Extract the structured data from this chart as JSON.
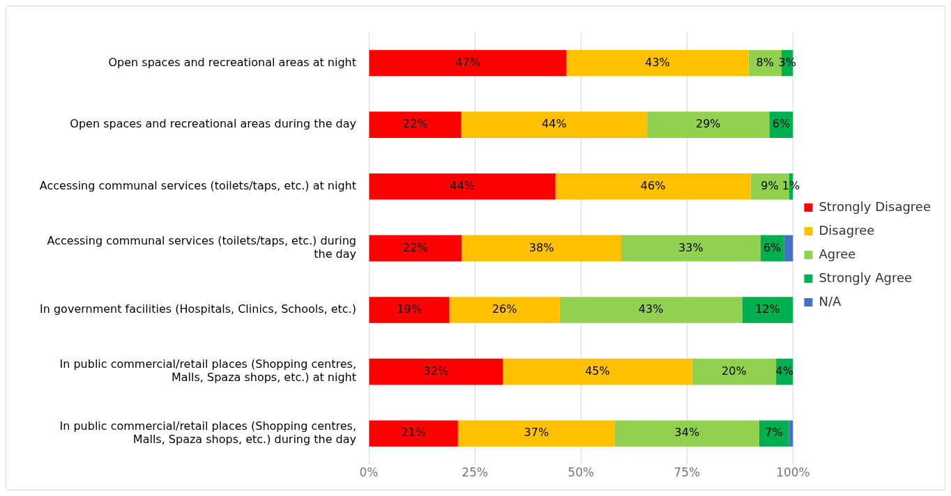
{
  "chart_data": {
    "type": "bar",
    "orientation": "horizontal",
    "stacked": true,
    "categories": [
      "Open spaces and recreational areas at night",
      "Open spaces and recreational areas during the day",
      "Accessing communal services (toilets/taps, etc.) at night",
      "Accessing communal services (toilets/taps, etc.) during the day",
      "In government facilities (Hospitals, Clinics, Schools, etc.)",
      "In public commercial/retail places (Shopping centres, Malls, Spaza shops, etc.) at night",
      "In public commercial/retail places (Shopping centres, Malls, Spaza shops, etc.) during the day"
    ],
    "series": [
      {
        "name": "Strongly Disagree",
        "color": "#ff0000",
        "values": [
          46.6,
          21.8,
          44,
          21.9,
          19,
          31.6,
          21
        ],
        "value_labels": [
          "47%",
          "22%",
          "44%",
          "22%",
          "19%",
          "32%",
          "21%"
        ]
      },
      {
        "name": "Disagree",
        "color": "#ffc000",
        "values": [
          42.9,
          43.8,
          46,
          37.6,
          26,
          44.6,
          37
        ],
        "value_labels": [
          "43%",
          "44%",
          "46%",
          "38%",
          "26%",
          "45%",
          "37%"
        ]
      },
      {
        "name": "Agree",
        "color": "#92d050",
        "values": [
          7.8,
          28.8,
          9,
          32.8,
          43,
          19.8,
          34
        ],
        "value_labels": [
          "8%",
          "29%",
          "9%",
          "33%",
          "43%",
          "20%",
          "34%"
        ]
      },
      {
        "name": "Strongly Agree",
        "color": "#00b050",
        "values": [
          2.7,
          5.6,
          1,
          5.6,
          12,
          4.0,
          7
        ],
        "value_labels": [
          "3%",
          "6%",
          "1%",
          "6%",
          "12%",
          "4%",
          "7%"
        ]
      },
      {
        "name": "N/A",
        "color": "#4472c4",
        "values": [
          null,
          null,
          null,
          2.1,
          null,
          null,
          1
        ],
        "value_labels": [
          null,
          null,
          null,
          null,
          null,
          null,
          null
        ]
      }
    ],
    "xlim": [
      0,
      100
    ],
    "xticks": [
      {
        "value": 0,
        "label": "0%"
      },
      {
        "value": 25,
        "label": "25%"
      },
      {
        "value": 50,
        "label": "50%"
      },
      {
        "value": 75,
        "label": "75%"
      },
      {
        "value": 100,
        "label": "100%"
      }
    ],
    "grid": "x",
    "legend": "right"
  }
}
